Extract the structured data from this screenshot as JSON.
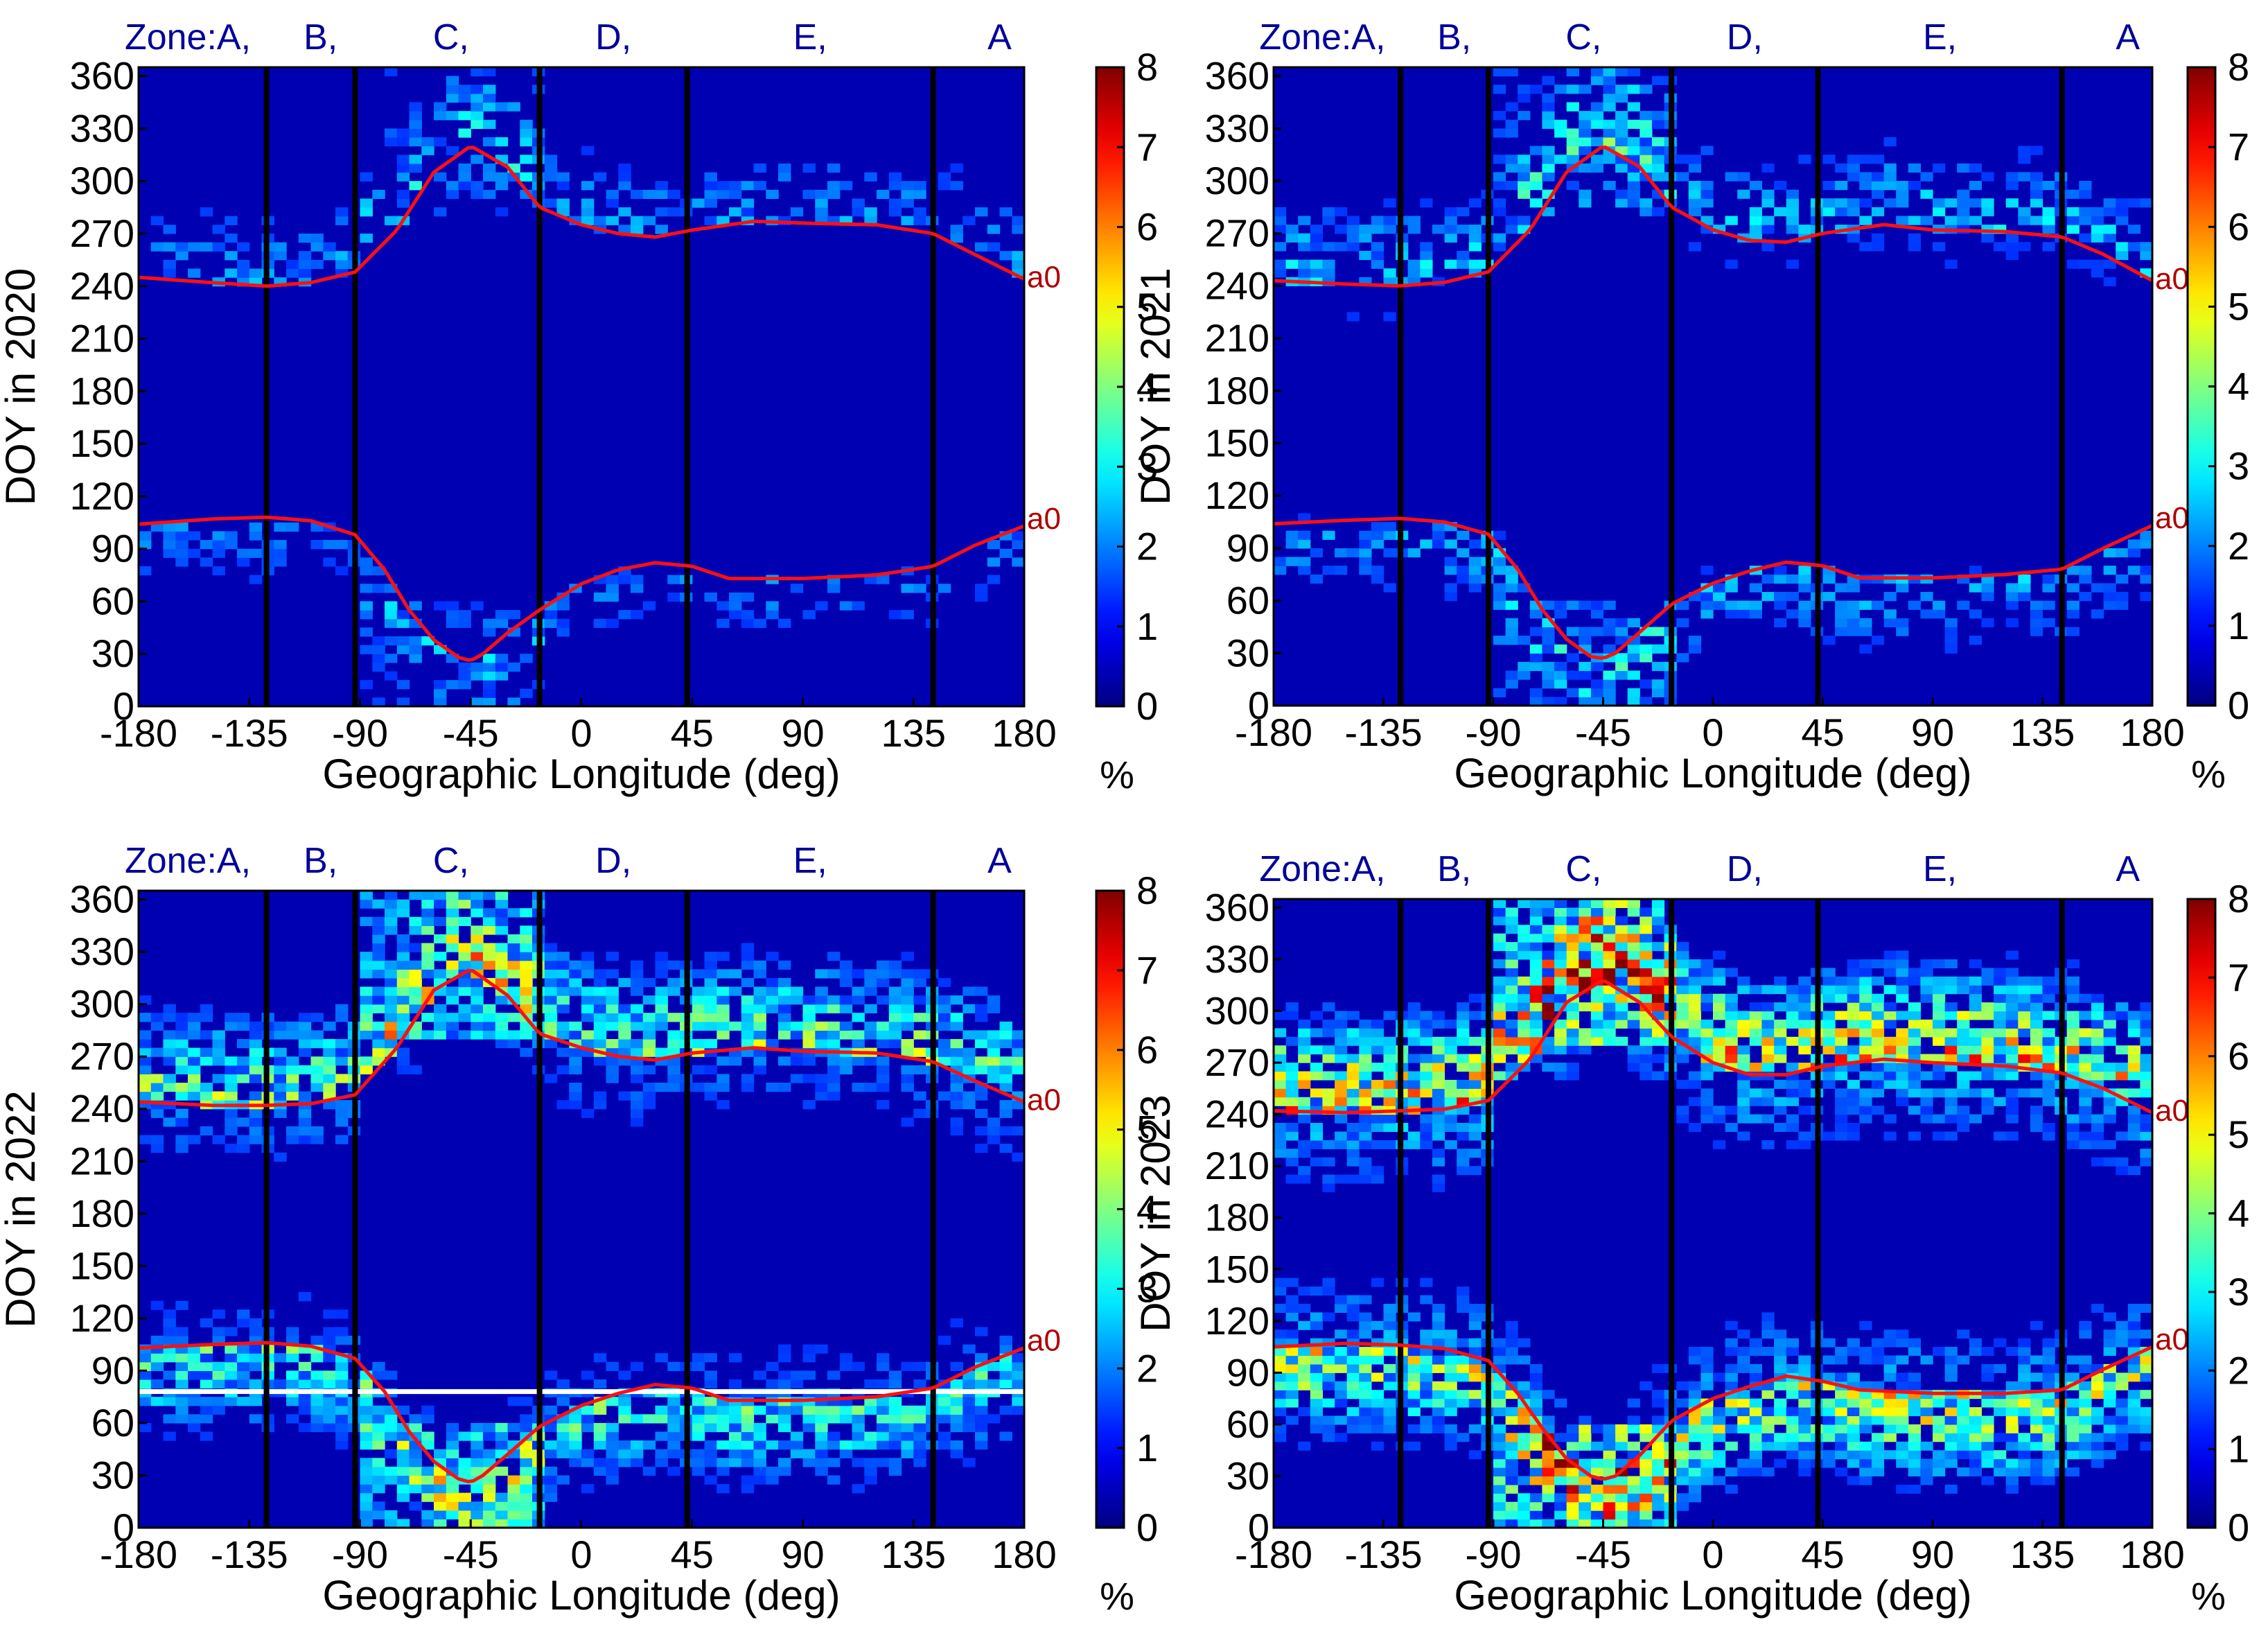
{
  "chart_data": [
    {
      "type": "heatmap",
      "year": 2020,
      "ylabel": "DOY in 2020",
      "xlabel": "Geographic Longitude (deg)",
      "xlim": [
        -180,
        180
      ],
      "ylim": [
        0,
        365
      ],
      "xticks": [
        "-180",
        "-135",
        "-90",
        "-45",
        "0",
        "45",
        "90",
        "135",
        "180"
      ],
      "yticks": [
        "0",
        "30",
        "60",
        "90",
        "120",
        "150",
        "180",
        "210",
        "240",
        "270",
        "300",
        "330",
        "360"
      ],
      "colorbar": {
        "min": 0,
        "max": 8,
        "ticks": [
          "0",
          "1",
          "2",
          "3",
          "4",
          "5",
          "6",
          "7",
          "8"
        ],
        "unit": "%"
      },
      "zone_boundaries_deg": [
        -128,
        -92,
        -17,
        43,
        143
      ],
      "zone_labels": [
        "Zone:A,",
        "B,",
        "C,",
        "D,",
        "E,",
        "A"
      ],
      "curve_label": "a0",
      "upper_curve": {
        "lon": [
          -180,
          -150,
          -128,
          -110,
          -92,
          -75,
          -60,
          -45,
          -30,
          -17,
          0,
          15,
          30,
          45,
          70,
          90,
          120,
          143,
          160,
          180
        ],
        "doy": [
          245,
          242,
          240,
          242,
          248,
          272,
          305,
          320,
          308,
          285,
          275,
          270,
          268,
          272,
          277,
          276,
          275,
          270,
          258,
          244
        ]
      },
      "lower_curve": {
        "lon": [
          -180,
          -150,
          -128,
          -110,
          -92,
          -80,
          -70,
          -60,
          -50,
          -45,
          -40,
          -30,
          -17,
          0,
          15,
          30,
          45,
          60,
          90,
          120,
          143,
          160,
          180
        ],
        "doy": [
          104,
          107,
          108,
          106,
          98,
          78,
          55,
          38,
          28,
          26,
          30,
          42,
          55,
          70,
          78,
          82,
          80,
          73,
          73,
          75,
          80,
          92,
          103
        ]
      },
      "intensity": 0.45,
      "white_line_doy": null
    },
    {
      "type": "heatmap",
      "year": 2021,
      "ylabel": "DOY in 2021",
      "xlabel": "Geographic Longitude (deg)",
      "xlim": [
        -180,
        180
      ],
      "ylim": [
        0,
        365
      ],
      "xticks": [
        "-180",
        "-135",
        "-90",
        "-45",
        "0",
        "45",
        "90",
        "135",
        "180"
      ],
      "yticks": [
        "0",
        "30",
        "60",
        "90",
        "120",
        "150",
        "180",
        "210",
        "240",
        "270",
        "300",
        "330",
        "360"
      ],
      "colorbar": {
        "min": 0,
        "max": 8,
        "ticks": [
          "0",
          "1",
          "2",
          "3",
          "4",
          "5",
          "6",
          "7",
          "8"
        ],
        "unit": "%"
      },
      "zone_boundaries_deg": [
        -128,
        -92,
        -17,
        43,
        143
      ],
      "zone_labels": [
        "Zone:A,",
        "B,",
        "C,",
        "D,",
        "E,",
        "A"
      ],
      "curve_label": "a0",
      "upper_curve": {
        "lon": [
          -180,
          -150,
          -128,
          -110,
          -92,
          -75,
          -60,
          -45,
          -30,
          -17,
          0,
          15,
          30,
          45,
          70,
          90,
          120,
          143,
          160,
          180
        ],
        "doy": [
          243,
          241,
          240,
          242,
          248,
          272,
          305,
          320,
          308,
          285,
          272,
          266,
          265,
          270,
          275,
          272,
          271,
          268,
          258,
          243
        ]
      },
      "lower_curve": {
        "lon": [
          -180,
          -150,
          -128,
          -110,
          -92,
          -80,
          -70,
          -60,
          -50,
          -45,
          -40,
          -30,
          -17,
          0,
          15,
          30,
          45,
          60,
          90,
          120,
          143,
          160,
          180
        ],
        "doy": [
          104,
          106,
          107,
          105,
          98,
          78,
          55,
          38,
          28,
          27,
          30,
          42,
          58,
          70,
          77,
          82,
          80,
          73,
          73,
          75,
          78,
          90,
          103
        ]
      },
      "intensity": 0.6,
      "white_line_doy": null
    },
    {
      "type": "heatmap",
      "year": 2022,
      "ylabel": "DOY in 2022",
      "xlabel": "Geographic Longitude (deg)",
      "xlim": [
        -180,
        180
      ],
      "ylim": [
        0,
        365
      ],
      "xticks": [
        "-180",
        "-135",
        "-90",
        "-45",
        "0",
        "45",
        "90",
        "135",
        "180"
      ],
      "yticks": [
        "0",
        "30",
        "60",
        "90",
        "120",
        "150",
        "180",
        "210",
        "240",
        "270",
        "300",
        "330",
        "360"
      ],
      "colorbar": {
        "min": 0,
        "max": 8,
        "ticks": [
          "0",
          "1",
          "2",
          "3",
          "4",
          "5",
          "6",
          "7",
          "8"
        ],
        "unit": "%"
      },
      "zone_boundaries_deg": [
        -128,
        -92,
        -17,
        43,
        143
      ],
      "zone_labels": [
        "Zone:A,",
        "B,",
        "C,",
        "D,",
        "E,",
        "A"
      ],
      "curve_label": "a0",
      "upper_curve": {
        "lon": [
          -180,
          -150,
          -128,
          -110,
          -92,
          -75,
          -60,
          -45,
          -30,
          -17,
          0,
          15,
          30,
          45,
          70,
          90,
          120,
          143,
          160,
          180
        ],
        "doy": [
          244,
          242,
          242,
          243,
          248,
          275,
          308,
          320,
          305,
          283,
          275,
          270,
          268,
          272,
          275,
          273,
          272,
          267,
          256,
          244
        ]
      },
      "lower_curve": {
        "lon": [
          -180,
          -150,
          -128,
          -110,
          -92,
          -80,
          -70,
          -60,
          -50,
          -45,
          -40,
          -30,
          -17,
          0,
          15,
          30,
          45,
          60,
          90,
          120,
          143,
          160,
          180
        ],
        "doy": [
          103,
          105,
          106,
          104,
          97,
          78,
          55,
          38,
          28,
          26,
          30,
          42,
          58,
          70,
          77,
          82,
          80,
          73,
          73,
          75,
          80,
          92,
          103
        ]
      },
      "intensity": 1.0,
      "white_line_doy": 78
    },
    {
      "type": "heatmap",
      "year": 2023,
      "ylabel": "DOY in 2023",
      "xlabel": "Geographic Longitude (deg)",
      "xlim": [
        -180,
        180
      ],
      "ylim": [
        0,
        365
      ],
      "xticks": [
        "-180",
        "-135",
        "-90",
        "-45",
        "0",
        "45",
        "90",
        "135",
        "180"
      ],
      "yticks": [
        "0",
        "30",
        "60",
        "90",
        "120",
        "150",
        "180",
        "210",
        "240",
        "270",
        "300",
        "330",
        "360"
      ],
      "colorbar": {
        "min": 0,
        "max": 8,
        "ticks": [
          "0",
          "1",
          "2",
          "3",
          "4",
          "5",
          "6",
          "7",
          "8"
        ],
        "unit": "%"
      },
      "zone_boundaries_deg": [
        -128,
        -92,
        -17,
        43,
        143
      ],
      "zone_labels": [
        "Zone:A,",
        "B,",
        "C,",
        "D,",
        "E,",
        "A"
      ],
      "curve_label": "a0",
      "upper_curve": {
        "lon": [
          -180,
          -150,
          -128,
          -110,
          -92,
          -75,
          -60,
          -45,
          -30,
          -17,
          0,
          15,
          30,
          45,
          70,
          90,
          120,
          143,
          160,
          180
        ],
        "doy": [
          242,
          241,
          242,
          243,
          248,
          272,
          305,
          318,
          305,
          285,
          270,
          263,
          263,
          268,
          272,
          270,
          268,
          264,
          255,
          241
        ]
      },
      "lower_curve": {
        "lon": [
          -180,
          -150,
          -128,
          -110,
          -92,
          -80,
          -70,
          -60,
          -50,
          -45,
          -40,
          -30,
          -17,
          0,
          15,
          30,
          45,
          60,
          90,
          120,
          143,
          160,
          180
        ],
        "doy": [
          105,
          107,
          106,
          104,
          97,
          78,
          58,
          40,
          30,
          28,
          30,
          42,
          62,
          75,
          82,
          88,
          85,
          80,
          78,
          78,
          80,
          92,
          105
        ]
      },
      "intensity": 1.5,
      "white_line_doy": null
    }
  ]
}
